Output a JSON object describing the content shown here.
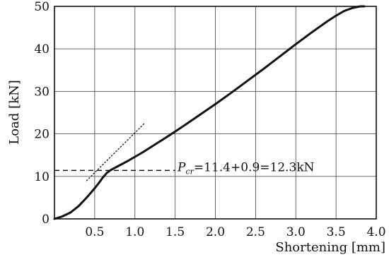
{
  "chart_data": {
    "type": "line",
    "title": "",
    "xlabel": "Shortening [mm]",
    "ylabel": "Load [kN]",
    "xlim": [
      0,
      4.0
    ],
    "ylim": [
      0,
      50
    ],
    "grid": true,
    "x_ticks": [
      0.5,
      1.0,
      1.5,
      2.0,
      2.5,
      3.0,
      3.5,
      4.0
    ],
    "x_tick_labels": [
      "0.5",
      "1.0",
      "1.5",
      "2.0",
      "2.5",
      "3.0",
      "3.5",
      "4.0"
    ],
    "y_ticks": [
      0,
      10,
      20,
      30,
      40,
      50
    ],
    "y_tick_labels": [
      "0",
      "10",
      "20",
      "30",
      "40",
      "50"
    ],
    "series": [
      {
        "style": "solid",
        "x": [
          0.0,
          0.1,
          0.2,
          0.3,
          0.4,
          0.5,
          0.55,
          0.6,
          0.65,
          0.7,
          0.75,
          0.8,
          0.9,
          1.0,
          1.1,
          1.2,
          1.4,
          1.6,
          1.8,
          2.0,
          2.2,
          2.4,
          2.6,
          2.8,
          3.0,
          3.2,
          3.4,
          3.5,
          3.6,
          3.7,
          3.8,
          3.85
        ],
        "y": [
          0.0,
          0.6,
          1.5,
          3.0,
          5.0,
          7.2,
          8.4,
          9.7,
          10.8,
          11.5,
          12.0,
          12.5,
          13.5,
          14.6,
          15.7,
          16.9,
          19.3,
          21.8,
          24.4,
          27.0,
          29.7,
          32.5,
          35.3,
          38.2,
          41.1,
          43.9,
          46.6,
          47.8,
          48.9,
          49.6,
          50.0,
          50.0
        ]
      },
      {
        "style": "dotted",
        "x": [
          0.4,
          1.12
        ],
        "y": [
          9.0,
          22.5
        ]
      },
      {
        "style": "dashed",
        "x": [
          0.0,
          1.5
        ],
        "y": [
          11.4,
          11.4
        ]
      }
    ],
    "annotations": [
      {
        "text_prefix": "P",
        "text_subscript": "cr",
        "text_rest": "=11.4+0.9=12.3kN",
        "x": 1.53,
        "y": 11.4
      }
    ]
  }
}
